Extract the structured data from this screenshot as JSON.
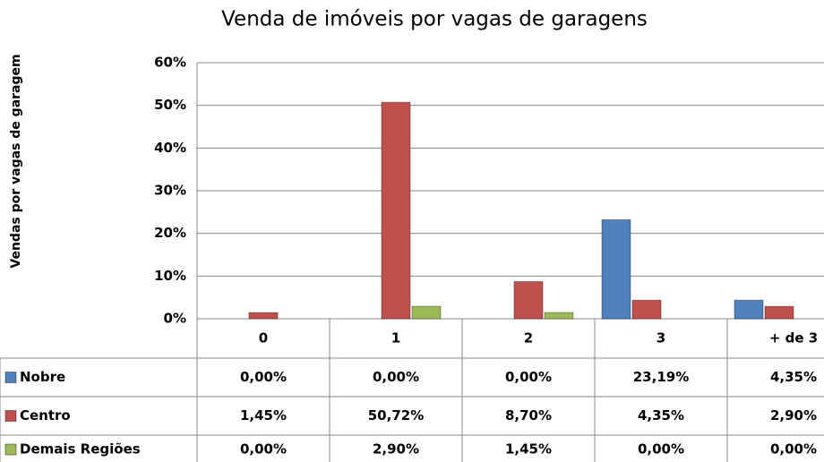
{
  "chart_data": {
    "type": "bar",
    "title": "Venda de imóveis por vagas de garagens",
    "y_label": "Vendas por vagas de garagem",
    "categories": [
      "0",
      "1",
      "2",
      "3",
      "+ de 3"
    ],
    "series": [
      {
        "name": "Nobre",
        "color": "#4f81bd",
        "values": [
          0,
          0,
          0,
          23.19,
          4.35
        ],
        "value_labels": [
          "0,00%",
          "0,00%",
          "0,00%",
          "23,19%",
          "4,35%"
        ]
      },
      {
        "name": "Centro",
        "color": "#c0504d",
        "values": [
          1.45,
          50.72,
          8.7,
          4.35,
          2.9
        ],
        "value_labels": [
          "1,45%",
          "50,72%",
          "8,70%",
          "4,35%",
          "2,90%"
        ]
      },
      {
        "name": "Demais Regiões",
        "color": "#9bbb59",
        "values": [
          0,
          2.9,
          1.45,
          0,
          0
        ],
        "value_labels": [
          "0,00%",
          "2,90%",
          "1,45%",
          "0,00%",
          "0,00%"
        ]
      }
    ],
    "ylim": [
      0,
      60
    ],
    "yticks": [
      {
        "value": 0,
        "label": "0%"
      },
      {
        "value": 10,
        "label": "10%"
      },
      {
        "value": 20,
        "label": "20%"
      },
      {
        "value": 30,
        "label": "30%"
      },
      {
        "value": 40,
        "label": "40%"
      },
      {
        "value": 50,
        "label": "50%"
      },
      {
        "value": 60,
        "label": "60%"
      }
    ],
    "grid": true,
    "legend": "table"
  }
}
